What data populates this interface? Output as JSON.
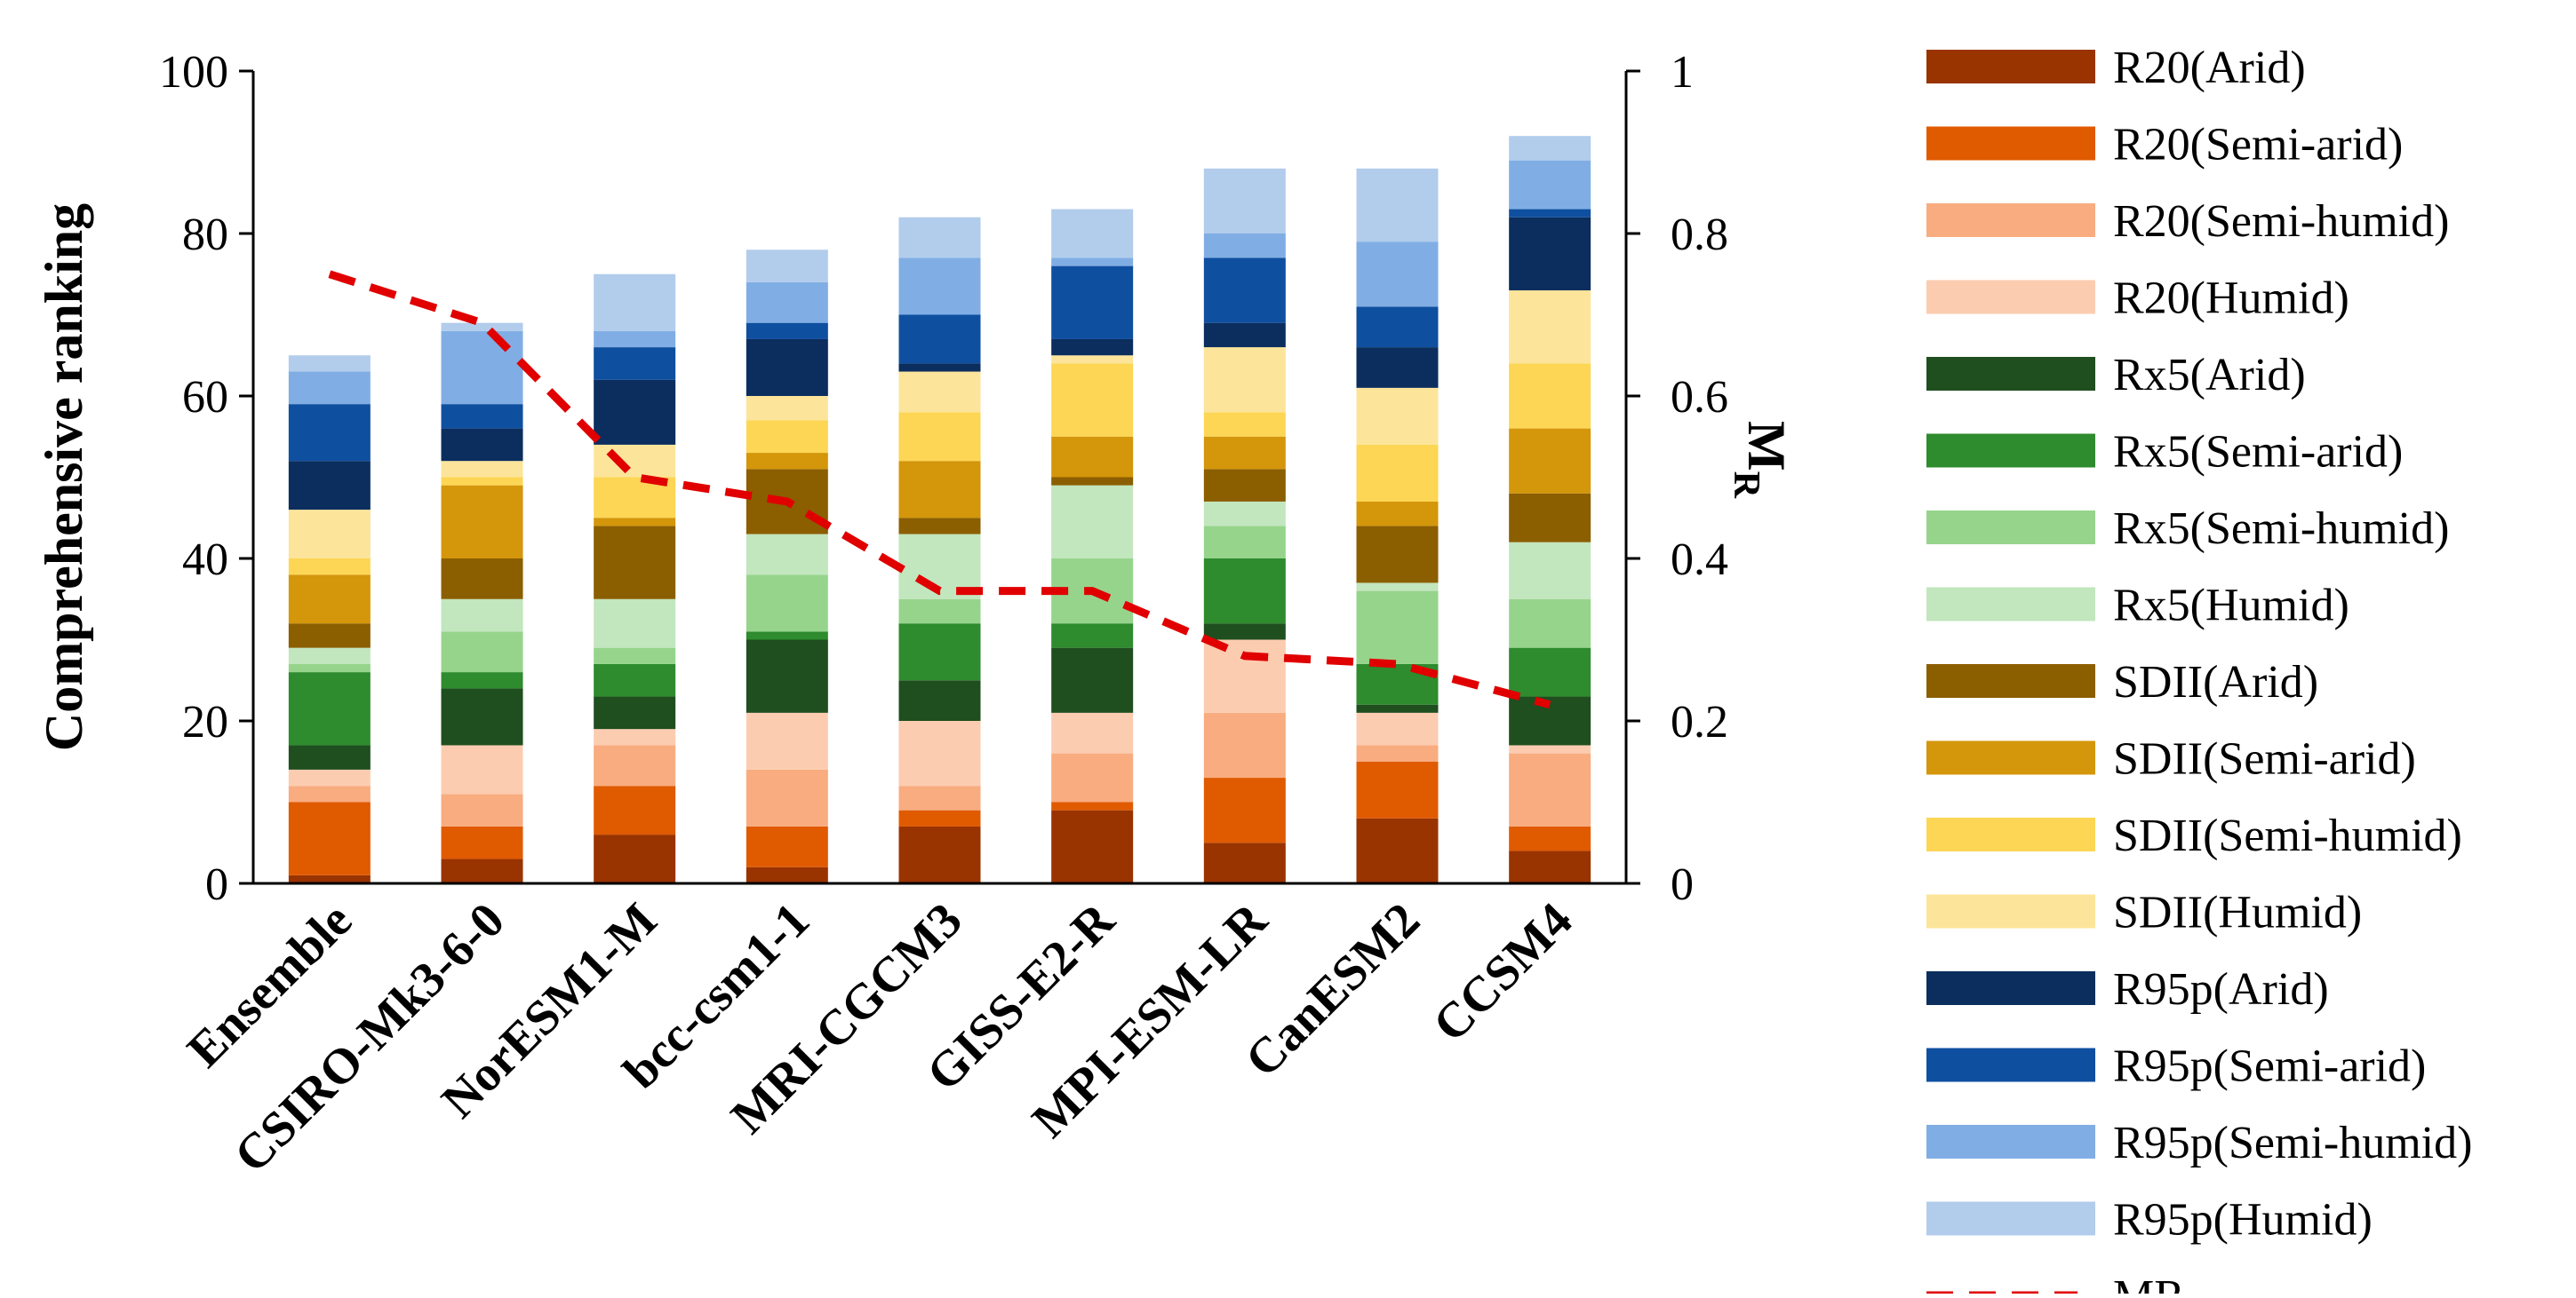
{
  "chart_data": {
    "type": "bar",
    "stacked": true,
    "title": "",
    "xlabel": "",
    "ylabel": "Comprehensive ranking",
    "y2label_main": "M",
    "y2label_sub": "R",
    "ylim": [
      0,
      100
    ],
    "y2lim": [
      0,
      1
    ],
    "yticks": [
      "0",
      "20",
      "40",
      "60",
      "80",
      "100"
    ],
    "y2ticks": [
      "0",
      "0.2",
      "0.4",
      "0.6",
      "0.8",
      "1"
    ],
    "categories": [
      "Ensemble",
      "CSIRO-Mk3-6-0",
      "NorESM1-M",
      "bcc-csm1-1",
      "MRI-CGCM3",
      "GISS-E2-R",
      "MPI-ESM-LR",
      "CanESM2",
      "CCSM4"
    ],
    "series": [
      {
        "name": "R20(Arid)",
        "color": "#993300",
        "values": [
          1,
          3,
          6,
          2,
          7,
          9,
          5,
          8,
          4
        ]
      },
      {
        "name": "R20(Semi-arid)",
        "color": "#E05A00",
        "values": [
          9,
          4,
          6,
          5,
          2,
          1,
          8,
          7,
          3
        ]
      },
      {
        "name": "R20(Semi-humid)",
        "color": "#F8AC80",
        "values": [
          2,
          4,
          5,
          7,
          3,
          6,
          8,
          2,
          9
        ]
      },
      {
        "name": "R20(Humid)",
        "color": "#FCCCB0",
        "values": [
          2,
          6,
          2,
          7,
          8,
          5,
          9,
          4,
          1
        ]
      },
      {
        "name": "Rx5(Arid)",
        "color": "#1F4E1F",
        "values": [
          3,
          7,
          4,
          9,
          5,
          8,
          2,
          1,
          6
        ]
      },
      {
        "name": "Rx5(Semi-arid)",
        "color": "#2E8B2E",
        "values": [
          9,
          2,
          4,
          1,
          7,
          3,
          8,
          5,
          6
        ]
      },
      {
        "name": "Rx5(Semi-humid)",
        "color": "#96D48C",
        "values": [
          1,
          5,
          2,
          7,
          3,
          8,
          4,
          9,
          6
        ]
      },
      {
        "name": "Rx5(Humid)",
        "color": "#C2E6BE",
        "values": [
          2,
          4,
          6,
          5,
          8,
          9,
          3,
          1,
          7
        ]
      },
      {
        "name": "SDII(Arid)",
        "color": "#8B5E00",
        "values": [
          3,
          5,
          9,
          8,
          2,
          1,
          4,
          7,
          6
        ]
      },
      {
        "name": "SDII(Semi-arid)",
        "color": "#D4960A",
        "values": [
          6,
          9,
          1,
          2,
          7,
          5,
          4,
          3,
          8
        ]
      },
      {
        "name": "SDII(Semi-humid)",
        "color": "#FCD654",
        "values": [
          2,
          1,
          5,
          4,
          6,
          9,
          3,
          7,
          8
        ]
      },
      {
        "name": "SDII(Humid)",
        "color": "#FCE59A",
        "values": [
          6,
          2,
          4,
          3,
          5,
          1,
          8,
          7,
          9
        ]
      },
      {
        "name": "R95p(Arid)",
        "color": "#0B2E5E",
        "values": [
          6,
          4,
          8,
          7,
          1,
          2,
          3,
          5,
          9
        ]
      },
      {
        "name": "R95p(Semi-arid)",
        "color": "#0F4FA0",
        "values": [
          7,
          3,
          4,
          2,
          6,
          9,
          8,
          5,
          1
        ]
      },
      {
        "name": "R95p(Semi-humid)",
        "color": "#80AEE4",
        "values": [
          4,
          9,
          2,
          5,
          7,
          1,
          3,
          8,
          6
        ]
      },
      {
        "name": "R95p(Humid)",
        "color": "#B2CCEC",
        "values": [
          2,
          1,
          7,
          4,
          5,
          6,
          8,
          9,
          3
        ]
      }
    ],
    "line": {
      "name": "MR",
      "color": "#E00000",
      "values": [
        0.75,
        0.69,
        0.5,
        0.47,
        0.36,
        0.36,
        0.28,
        0.27,
        0.22
      ]
    },
    "legend_position": "right"
  }
}
